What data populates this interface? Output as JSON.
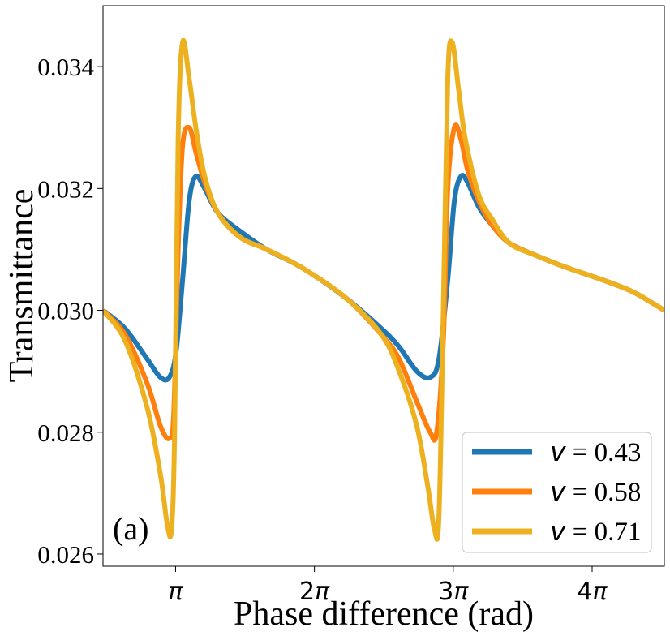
{
  "chart_data": {
    "type": "line",
    "xlabel": "Phase difference (rad)",
    "ylabel": "Transmittance",
    "panel_label": "(a)",
    "xlim": [
      1.5,
      14.2
    ],
    "ylim": [
      0.0258,
      0.035
    ],
    "x_ticks": [
      {
        "value": 3.1416,
        "label": "π"
      },
      {
        "value": 6.2832,
        "label": "2π"
      },
      {
        "value": 9.4248,
        "label": "3π"
      },
      {
        "value": 12.5664,
        "label": "4π"
      }
    ],
    "x_tick_coefficient_labels": [
      "",
      "2",
      "3",
      "4"
    ],
    "x_tick_pi_symbol": "π",
    "y_ticks": [
      {
        "value": 0.026,
        "label": "0.026"
      },
      {
        "value": 0.028,
        "label": "0.028"
      },
      {
        "value": 0.03,
        "label": "0.030"
      },
      {
        "value": 0.032,
        "label": "0.032"
      },
      {
        "value": 0.034,
        "label": "0.034"
      }
    ],
    "legend_position": "lower-right",
    "series": [
      {
        "name": "v = 0.43",
        "symbol": "v",
        "value_text": "= 0.43",
        "color": "#1f77b4",
        "x": [
          1.5,
          2.0,
          2.5,
          2.8,
          3.0,
          3.15,
          3.3,
          3.45,
          3.6,
          3.8,
          4.1,
          4.6,
          5.2,
          6.0,
          7.0,
          7.8,
          8.2,
          8.6,
          8.9,
          9.1,
          9.3,
          9.45,
          9.6,
          9.75,
          10.0,
          10.3,
          10.7,
          11.3,
          12.0,
          12.8,
          13.5,
          14.2
        ],
        "y": [
          0.03,
          0.0297,
          0.0292,
          0.0289,
          0.0289,
          0.0293,
          0.0305,
          0.0318,
          0.0322,
          0.032,
          0.0316,
          0.0313,
          0.031,
          0.0307,
          0.0302,
          0.0297,
          0.0294,
          0.029,
          0.0289,
          0.0292,
          0.0305,
          0.0318,
          0.0322,
          0.0321,
          0.0317,
          0.0314,
          0.0311,
          0.0309,
          0.0307,
          0.0305,
          0.0303,
          0.03
        ]
      },
      {
        "name": "v = 0.58",
        "symbol": "v",
        "value_text": "= 0.58",
        "color": "#ff7f0e",
        "x": [
          1.5,
          2.0,
          2.5,
          2.8,
          3.0,
          3.1,
          3.2,
          3.3,
          3.45,
          3.6,
          3.8,
          4.1,
          4.6,
          5.2,
          6.0,
          7.0,
          7.8,
          8.2,
          8.6,
          8.9,
          9.05,
          9.2,
          9.3,
          9.45,
          9.6,
          9.75,
          10.0,
          10.3,
          10.7,
          11.3,
          12.0,
          12.8,
          13.5,
          14.2
        ],
        "y": [
          0.03,
          0.0296,
          0.0288,
          0.0281,
          0.0279,
          0.0283,
          0.031,
          0.0327,
          0.033,
          0.0326,
          0.0321,
          0.0316,
          0.0312,
          0.031,
          0.0307,
          0.0302,
          0.0296,
          0.0292,
          0.0285,
          0.028,
          0.028,
          0.0295,
          0.032,
          0.033,
          0.0328,
          0.0323,
          0.0318,
          0.0314,
          0.0311,
          0.0309,
          0.0307,
          0.0305,
          0.0303,
          0.03
        ]
      },
      {
        "name": "v = 0.71",
        "symbol": "v",
        "value_text": "= 0.71",
        "color": "#edb120",
        "x": [
          1.5,
          2.0,
          2.5,
          2.8,
          2.95,
          3.05,
          3.12,
          3.2,
          3.3,
          3.45,
          3.6,
          3.8,
          4.1,
          4.6,
          5.2,
          6.0,
          7.0,
          7.8,
          8.2,
          8.6,
          8.85,
          9.0,
          9.1,
          9.2,
          9.3,
          9.4,
          9.55,
          9.7,
          10.0,
          10.3,
          10.7,
          11.3,
          12.0,
          12.8,
          13.5,
          14.2
        ],
        "y": [
          0.03,
          0.0295,
          0.0284,
          0.0273,
          0.0265,
          0.0264,
          0.028,
          0.0328,
          0.0344,
          0.0338,
          0.033,
          0.0322,
          0.0316,
          0.0312,
          0.031,
          0.0307,
          0.0302,
          0.0296,
          0.029,
          0.0281,
          0.0271,
          0.0264,
          0.0266,
          0.03,
          0.0338,
          0.0344,
          0.0336,
          0.0328,
          0.0319,
          0.0315,
          0.0311,
          0.0309,
          0.0307,
          0.0305,
          0.0303,
          0.03
        ]
      }
    ]
  }
}
